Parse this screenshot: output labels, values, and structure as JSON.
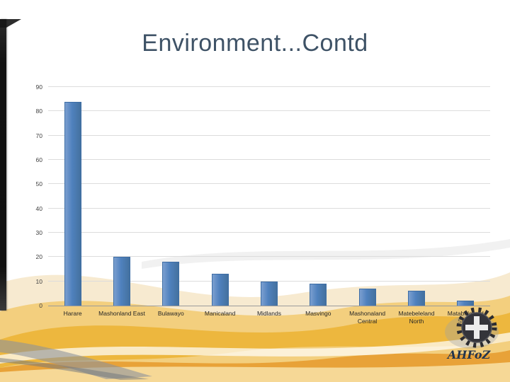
{
  "slide": {
    "title": "Environment...Contd"
  },
  "chart_data": {
    "type": "bar",
    "title": "",
    "xlabel": "",
    "ylabel": "",
    "categories": [
      "Harare",
      "Mashonland East",
      "Bulawayo",
      "Manicaland",
      "Midlands",
      "Masvingo",
      "Mashonaland Central",
      "Matebeleland North",
      "Matabeleland South"
    ],
    "values": [
      84,
      20,
      18,
      13,
      10,
      9,
      7,
      6,
      2
    ],
    "ylim": [
      0,
      90
    ],
    "yticks": [
      0,
      10,
      20,
      30,
      40,
      50,
      60,
      70,
      80,
      90
    ],
    "grid": true,
    "legend": "none",
    "bar_color": "#4f81bd"
  },
  "logo": {
    "text": "AHFoZ"
  },
  "colors": {
    "title": "#3e5266",
    "bar": "#4f81bd",
    "gridline": "#dcdcdc",
    "wave_gold": "#edb73e",
    "wave_orange": "#e79f35",
    "wave_cream": "#f7ead0"
  }
}
